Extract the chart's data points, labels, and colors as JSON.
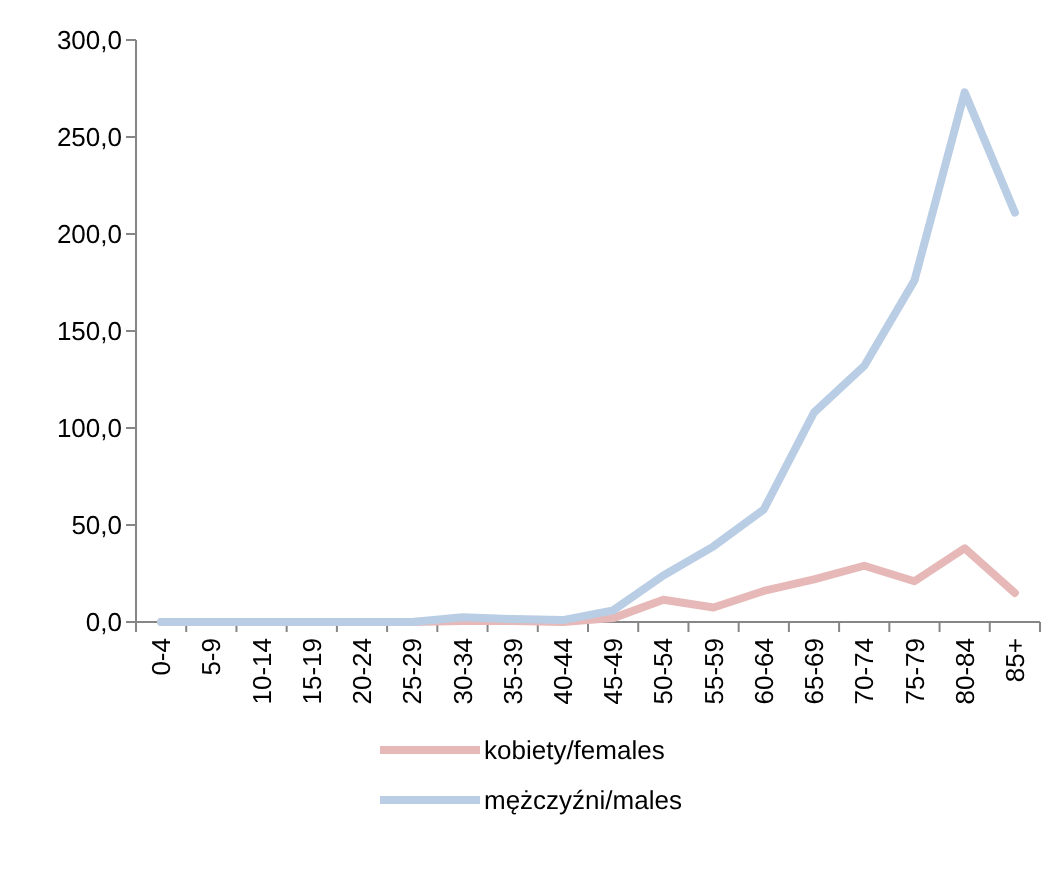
{
  "chart_data": {
    "type": "line",
    "categories": [
      "0-4",
      "5-9",
      "10-14",
      "15-19",
      "20-24",
      "25-29",
      "30-34",
      "35-39",
      "40-44",
      "45-49",
      "50-54",
      "55-59",
      "60-64",
      "65-69",
      "70-74",
      "75-79",
      "80-84",
      "85+"
    ],
    "series": [
      {
        "name": "kobiety/females",
        "color": "#e6b9b8",
        "values": [
          0,
          0,
          0,
          0,
          0,
          0,
          0.5,
          0.5,
          0,
          2,
          11.5,
          7.5,
          16,
          22,
          29,
          21,
          38,
          15
        ]
      },
      {
        "name": "mężczyźni/males",
        "color": "#b9cde5",
        "values": [
          0,
          0,
          0,
          0,
          0,
          0,
          2.5,
          1.5,
          1,
          6,
          24,
          39,
          58,
          108,
          132,
          176,
          273,
          211
        ]
      }
    ],
    "ylim": [
      0,
      300
    ],
    "yticks": [
      {
        "value": 0,
        "label": "0,0"
      },
      {
        "value": 50,
        "label": "50,0"
      },
      {
        "value": 100,
        "label": "100,0"
      },
      {
        "value": 150,
        "label": "150,0"
      },
      {
        "value": 200,
        "label": "200,0"
      },
      {
        "value": 250,
        "label": "250,0"
      },
      {
        "value": 300,
        "label": "300,0"
      }
    ],
    "grid": false,
    "legend": "bottom",
    "line_style": "solid",
    "marker": "none"
  }
}
